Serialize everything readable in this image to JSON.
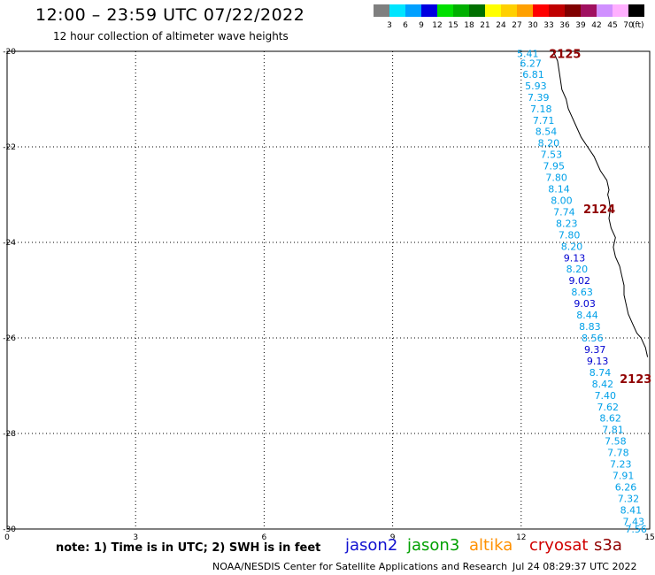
{
  "header": {
    "title": "12:00 – 23:59 UTC 07/22/2022",
    "subtitle": "12 hour collection of altimeter wave heights"
  },
  "colorbar": {
    "labels": [
      "3",
      "6",
      "9",
      "12",
      "15",
      "18",
      "21",
      "24",
      "27",
      "30",
      "33",
      "36",
      "39",
      "42",
      "45",
      "70"
    ],
    "unit": "(ft)",
    "colors": [
      "#7f7f7f",
      "#00e5ff",
      "#00a0ff",
      "#0000e0",
      "#00e000",
      "#00b000",
      "#007000",
      "#ffff00",
      "#ffd000",
      "#ffa000",
      "#ff0000",
      "#c00000",
      "#800000",
      "#a01060",
      "#d090ff",
      "#ffb0ff",
      "#000000"
    ]
  },
  "footer": {
    "note": "note: 1) Time is in UTC; 2) SWH is in feet",
    "credit": "NOAA/NESDIS Center for Satellite Applications and Research",
    "timestamp": "Jul 24 08:29:37 UTC 2022"
  },
  "legend": [
    {
      "name": "jason2",
      "color": "#1010d0"
    },
    {
      "name": "jason3",
      "color": "#00a000"
    },
    {
      "name": "altika",
      "color": "#ff9000"
    },
    {
      "name": "cryosat",
      "color": "#d00000"
    },
    {
      "name": "s3a",
      "color": "#900000"
    }
  ],
  "chart_data": {
    "type": "scatter",
    "title": "12:00 – 23:59 UTC 07/22/2022",
    "subtitle": "12 hour collection of altimeter wave heights",
    "xlim": [
      0,
      15
    ],
    "ylim": [
      -30,
      -20
    ],
    "xticks": [
      "0",
      "3",
      "6",
      "9",
      "12",
      "15"
    ],
    "yticks": [
      "-20",
      "-22",
      "-24",
      "-26",
      "-28",
      "-30"
    ],
    "grid": true,
    "pass_labels": [
      {
        "text": "2125",
        "x": 12.65,
        "y": -20.05,
        "color": "#900000"
      },
      {
        "text": "2124",
        "x": 13.45,
        "y": -23.3,
        "color": "#900000"
      },
      {
        "text": "2123",
        "x": 14.3,
        "y": -26.85,
        "color": "#900000"
      }
    ],
    "points": [
      {
        "x": 11.9,
        "y": -20.05,
        "value": "5.41",
        "color": "#00a0e8"
      },
      {
        "x": 11.97,
        "y": -20.25,
        "value": "6.27",
        "color": "#00a0e8"
      },
      {
        "x": 12.03,
        "y": -20.48,
        "value": "6.81",
        "color": "#00a0e8"
      },
      {
        "x": 12.09,
        "y": -20.72,
        "value": "5.93",
        "color": "#00a0e8"
      },
      {
        "x": 12.15,
        "y": -20.96,
        "value": "7.39",
        "color": "#00a0e8"
      },
      {
        "x": 12.21,
        "y": -21.2,
        "value": "7.18",
        "color": "#00a0e8"
      },
      {
        "x": 12.27,
        "y": -21.44,
        "value": "7.71",
        "color": "#00a0e8"
      },
      {
        "x": 12.33,
        "y": -21.68,
        "value": "8.54",
        "color": "#00a0e8"
      },
      {
        "x": 12.39,
        "y": -21.92,
        "value": "8.20",
        "color": "#00a0e8"
      },
      {
        "x": 12.45,
        "y": -22.16,
        "value": "7.53",
        "color": "#00a0e8"
      },
      {
        "x": 12.51,
        "y": -22.4,
        "value": "7.95",
        "color": "#00a0e8"
      },
      {
        "x": 12.57,
        "y": -22.64,
        "value": "7.80",
        "color": "#00a0e8"
      },
      {
        "x": 12.63,
        "y": -22.88,
        "value": "8.14",
        "color": "#00a0e8"
      },
      {
        "x": 12.69,
        "y": -23.12,
        "value": "8.00",
        "color": "#00a0e8"
      },
      {
        "x": 12.75,
        "y": -23.36,
        "value": "7.74",
        "color": "#00a0e8"
      },
      {
        "x": 12.81,
        "y": -23.6,
        "value": "8.23",
        "color": "#00a0e8"
      },
      {
        "x": 12.87,
        "y": -23.84,
        "value": "7.80",
        "color": "#00a0e8"
      },
      {
        "x": 12.93,
        "y": -24.08,
        "value": "8.20",
        "color": "#00a0e8"
      },
      {
        "x": 12.99,
        "y": -24.32,
        "value": "9.13",
        "color": "#0000d0"
      },
      {
        "x": 13.05,
        "y": -24.56,
        "value": "8.20",
        "color": "#00a0e8"
      },
      {
        "x": 13.11,
        "y": -24.8,
        "value": "9.02",
        "color": "#0000d0"
      },
      {
        "x": 13.17,
        "y": -25.04,
        "value": "8.63",
        "color": "#00a0e8"
      },
      {
        "x": 13.23,
        "y": -25.28,
        "value": "9.03",
        "color": "#0000d0"
      },
      {
        "x": 13.29,
        "y": -25.52,
        "value": "8.44",
        "color": "#00a0e8"
      },
      {
        "x": 13.35,
        "y": -25.76,
        "value": "8.83",
        "color": "#00a0e8"
      },
      {
        "x": 13.41,
        "y": -26.0,
        "value": "8.56",
        "color": "#00a0e8"
      },
      {
        "x": 13.47,
        "y": -26.24,
        "value": "9.37",
        "color": "#0000d0"
      },
      {
        "x": 13.53,
        "y": -26.48,
        "value": "9.13",
        "color": "#0000d0"
      },
      {
        "x": 13.59,
        "y": -26.72,
        "value": "8.74",
        "color": "#00a0e8"
      },
      {
        "x": 13.65,
        "y": -26.96,
        "value": "8.42",
        "color": "#00a0e8"
      },
      {
        "x": 13.71,
        "y": -27.2,
        "value": "7.40",
        "color": "#00a0e8"
      },
      {
        "x": 13.77,
        "y": -27.44,
        "value": "7.62",
        "color": "#00a0e8"
      },
      {
        "x": 13.83,
        "y": -27.68,
        "value": "8.62",
        "color": "#00a0e8"
      },
      {
        "x": 13.89,
        "y": -27.92,
        "value": "7.81",
        "color": "#00a0e8"
      },
      {
        "x": 13.95,
        "y": -28.16,
        "value": "7.58",
        "color": "#00a0e8"
      },
      {
        "x": 14.01,
        "y": -28.4,
        "value": "7.78",
        "color": "#00a0e8"
      },
      {
        "x": 14.07,
        "y": -28.64,
        "value": "7.23",
        "color": "#00a0e8"
      },
      {
        "x": 14.13,
        "y": -28.88,
        "value": "7.91",
        "color": "#00a0e8"
      },
      {
        "x": 14.19,
        "y": -29.12,
        "value": "6.26",
        "color": "#00a0e8"
      },
      {
        "x": 14.25,
        "y": -29.36,
        "value": "7.32",
        "color": "#00a0e8"
      },
      {
        "x": 14.31,
        "y": -29.6,
        "value": "8.41",
        "color": "#00a0e8"
      },
      {
        "x": 14.37,
        "y": -29.84,
        "value": "7.43",
        "color": "#00a0e8"
      },
      {
        "x": 14.43,
        "y": -30.0,
        "value": "7.56",
        "color": "#00a0e8"
      }
    ],
    "coastline": [
      [
        12.75,
        -20.0
      ],
      [
        12.85,
        -20.2
      ],
      [
        12.9,
        -20.5
      ],
      [
        12.95,
        -20.8
      ],
      [
        13.05,
        -21.0
      ],
      [
        13.1,
        -21.2
      ],
      [
        13.25,
        -21.5
      ],
      [
        13.4,
        -21.8
      ],
      [
        13.55,
        -22.0
      ],
      [
        13.7,
        -22.2
      ],
      [
        13.85,
        -22.5
      ],
      [
        14.0,
        -22.7
      ],
      [
        14.05,
        -22.9
      ],
      [
        14.02,
        -23.0
      ],
      [
        14.05,
        -23.1
      ],
      [
        14.08,
        -23.3
      ],
      [
        14.05,
        -23.5
      ],
      [
        14.1,
        -23.7
      ],
      [
        14.2,
        -23.9
      ],
      [
        14.15,
        -24.1
      ],
      [
        14.2,
        -24.3
      ],
      [
        14.3,
        -24.5
      ],
      [
        14.35,
        -24.7
      ],
      [
        14.4,
        -24.9
      ],
      [
        14.4,
        -25.1
      ],
      [
        14.45,
        -25.3
      ],
      [
        14.5,
        -25.5
      ],
      [
        14.6,
        -25.7
      ],
      [
        14.7,
        -25.9
      ],
      [
        14.8,
        -26.0
      ],
      [
        14.85,
        -26.1
      ],
      [
        14.9,
        -26.2
      ],
      [
        14.95,
        -26.4
      ]
    ]
  }
}
